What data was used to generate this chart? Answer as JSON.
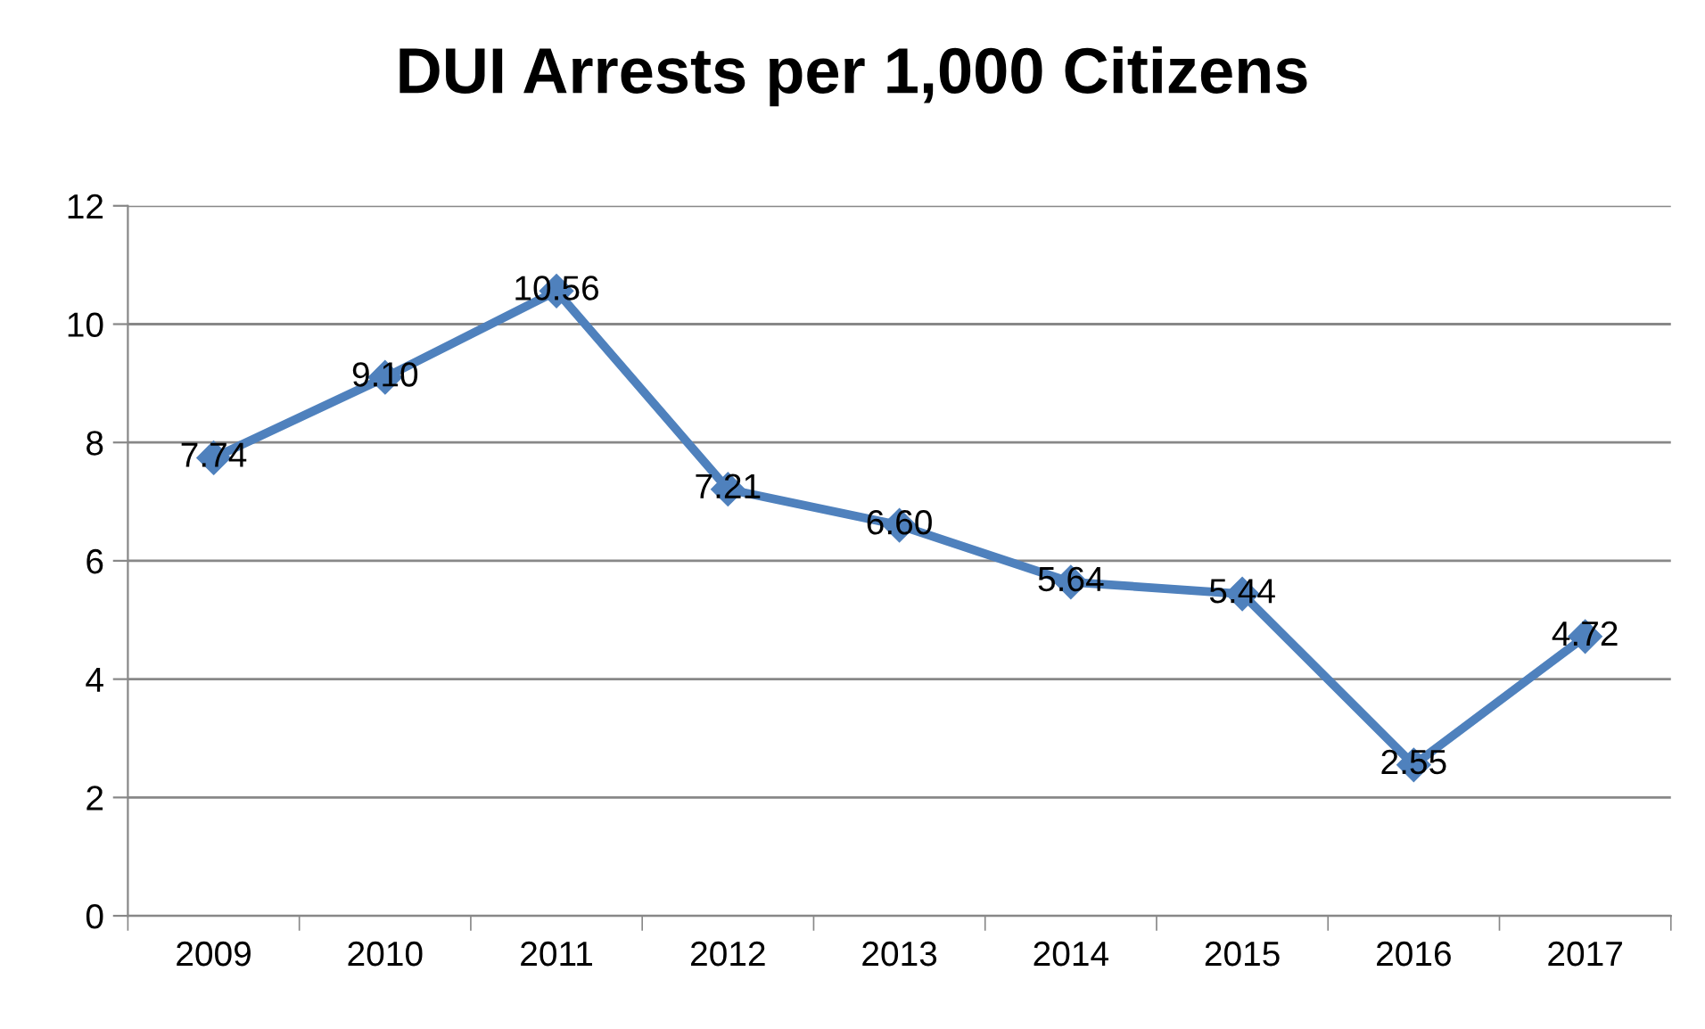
{
  "chart_data": {
    "type": "line",
    "title": "DUI Arrests per 1,000 Citizens",
    "categories": [
      "2009",
      "2010",
      "2011",
      "2012",
      "2013",
      "2014",
      "2015",
      "2016",
      "2017"
    ],
    "values": [
      7.74,
      9.1,
      10.56,
      7.21,
      6.6,
      5.64,
      5.44,
      2.55,
      4.72
    ],
    "value_labels": [
      "7.74",
      "9.10",
      "10.56",
      "7.21",
      "6.60",
      "5.64",
      "5.44",
      "2.55",
      "4.72"
    ],
    "color": "#4f81bd",
    "marker": "diamond",
    "line_style": "solid",
    "ylim": [
      0,
      12
    ],
    "yticks": [
      0,
      2,
      4,
      6,
      8,
      10,
      12
    ],
    "grid": "y",
    "legend": false
  }
}
